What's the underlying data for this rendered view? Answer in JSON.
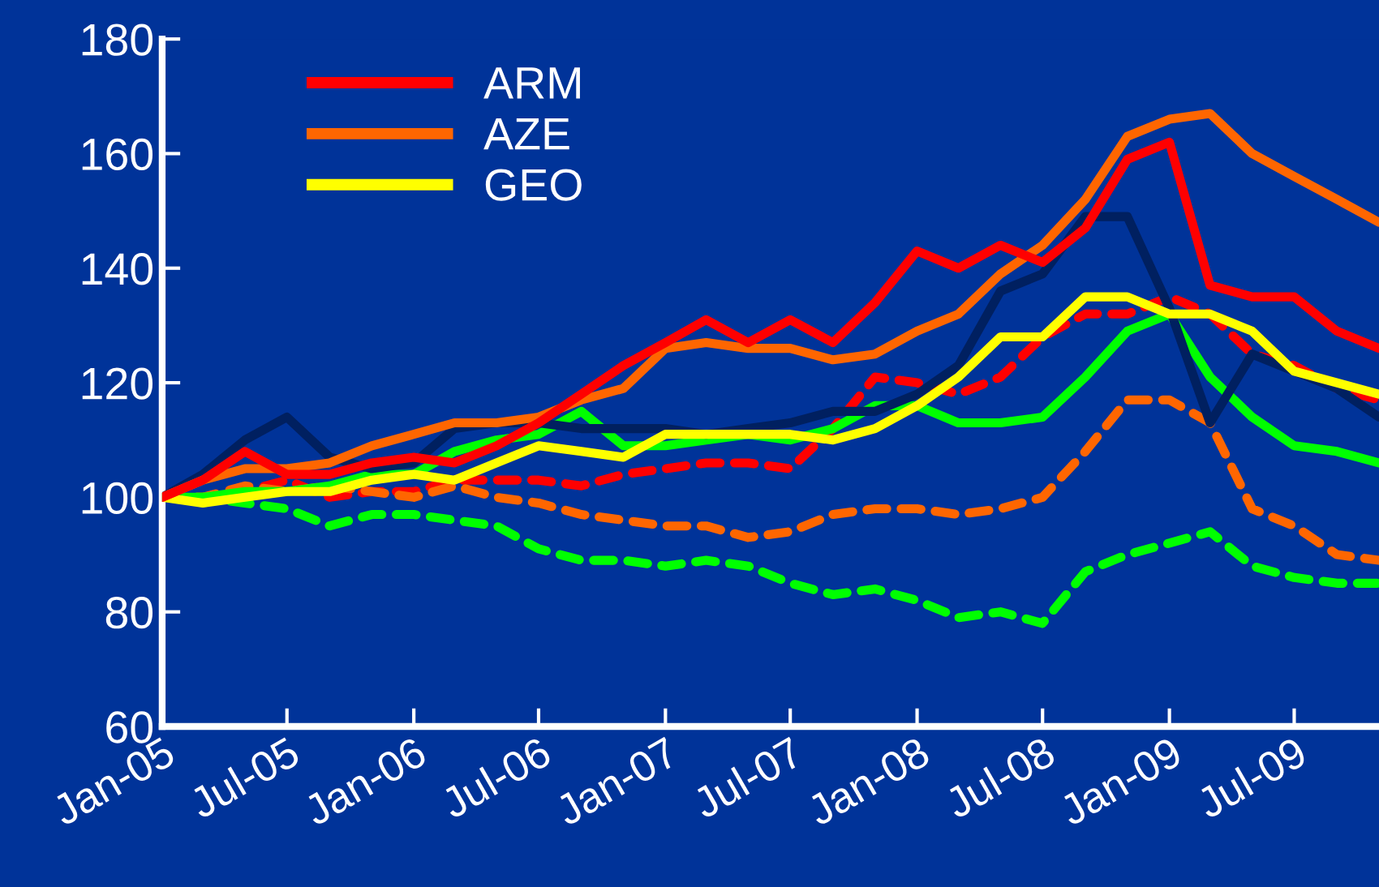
{
  "chart_data": {
    "type": "line",
    "x": [
      "2005-01",
      "2005-03",
      "2005-05",
      "2005-07",
      "2005-09",
      "2005-11",
      "2006-01",
      "2006-03",
      "2006-05",
      "2006-07",
      "2006-09",
      "2006-11",
      "2007-01",
      "2007-03",
      "2007-05",
      "2007-07",
      "2007-09",
      "2007-11",
      "2008-01",
      "2008-03",
      "2008-05",
      "2008-07",
      "2008-09",
      "2008-11",
      "2009-01",
      "2009-03",
      "2009-05",
      "2009-07",
      "2009-09",
      "2009-11"
    ],
    "series": [
      {
        "name": "ARM",
        "color": "#ff0000",
        "values": [
          100,
          103,
          108,
          104,
          104,
          106,
          107,
          106,
          109,
          113,
          118,
          123,
          127,
          131,
          127,
          131,
          127,
          134,
          143,
          140,
          144,
          141,
          147,
          159,
          162,
          137,
          135,
          135,
          129,
          126
        ]
      },
      {
        "name": "AZE",
        "color": "#ff6600",
        "values": [
          100,
          103,
          105,
          105,
          106,
          109,
          111,
          113,
          113,
          114,
          117,
          119,
          126,
          127,
          126,
          126,
          124,
          125,
          129,
          132,
          139,
          144,
          152,
          163,
          166,
          167,
          160,
          156,
          152,
          148
        ]
      },
      {
        "name": "GEO",
        "color": "#ffff00",
        "values": [
          100,
          99,
          100,
          101,
          101,
          103,
          104,
          103,
          106,
          109,
          108,
          107,
          111,
          111,
          111,
          111,
          110,
          112,
          116,
          121,
          128,
          128,
          135,
          135,
          132,
          132,
          129,
          122,
          120,
          118
        ]
      },
      {
        "color": "#002060",
        "values": [
          100,
          104,
          110,
          114,
          107,
          105,
          106,
          112,
          113,
          113,
          112,
          112,
          112,
          111,
          112,
          113,
          115,
          115,
          118,
          123,
          136,
          139,
          149,
          149,
          133,
          113,
          125,
          122,
          119,
          114
        ]
      },
      {
        "color": "#00ff00",
        "values": [
          100,
          100,
          101,
          101,
          102,
          104,
          104,
          108,
          110,
          111,
          115,
          109,
          109,
          110,
          111,
          110,
          112,
          116,
          116,
          113,
          113,
          114,
          121,
          129,
          132,
          121,
          114,
          109,
          108,
          106
        ]
      },
      {
        "color": "#ff0000",
        "line_style": "dashed",
        "values": [
          100,
          100,
          101,
          103,
          100,
          101,
          101,
          103,
          103,
          103,
          102,
          104,
          105,
          106,
          106,
          105,
          112,
          121,
          120,
          118,
          121,
          128,
          132,
          132,
          135,
          132,
          125,
          123,
          119,
          117
        ]
      },
      {
        "color": "#ff6600",
        "line_style": "dashed",
        "values": [
          100,
          100,
          102,
          101,
          102,
          101,
          100,
          102,
          100,
          99,
          97,
          96,
          95,
          95,
          93,
          94,
          97,
          98,
          98,
          97,
          98,
          100,
          108,
          117,
          117,
          113,
          98,
          95,
          90,
          89
        ]
      },
      {
        "color": "#00ff00",
        "line_style": "dashed",
        "values": [
          100,
          100,
          99,
          98,
          95,
          97,
          97,
          96,
          95,
          91,
          89,
          89,
          88,
          89,
          88,
          85,
          83,
          84,
          82,
          79,
          80,
          78,
          87,
          90,
          92,
          94,
          88,
          86,
          85,
          85
        ]
      }
    ],
    "xlim": [
      "2005-01",
      "2009-11"
    ],
    "xticks": [
      {
        "value": "2005-01",
        "label": "Jan-05"
      },
      {
        "value": "2005-07",
        "label": "Jul-05"
      },
      {
        "value": "2006-01",
        "label": "Jan-06"
      },
      {
        "value": "2006-07",
        "label": "Jul-06"
      },
      {
        "value": "2007-01",
        "label": "Jan-07"
      },
      {
        "value": "2007-07",
        "label": "Jul-07"
      },
      {
        "value": "2008-01",
        "label": "Jan-08"
      },
      {
        "value": "2008-07",
        "label": "Jul-08"
      },
      {
        "value": "2009-01",
        "label": "Jan-09"
      },
      {
        "value": "2009-07",
        "label": "Jul-09"
      }
    ],
    "ylim": [
      60,
      180
    ],
    "yticks": [
      60,
      80,
      100,
      120,
      140,
      160,
      180
    ],
    "legend": "top left",
    "grid": false,
    "line_style": "solid",
    "marker": "none"
  }
}
